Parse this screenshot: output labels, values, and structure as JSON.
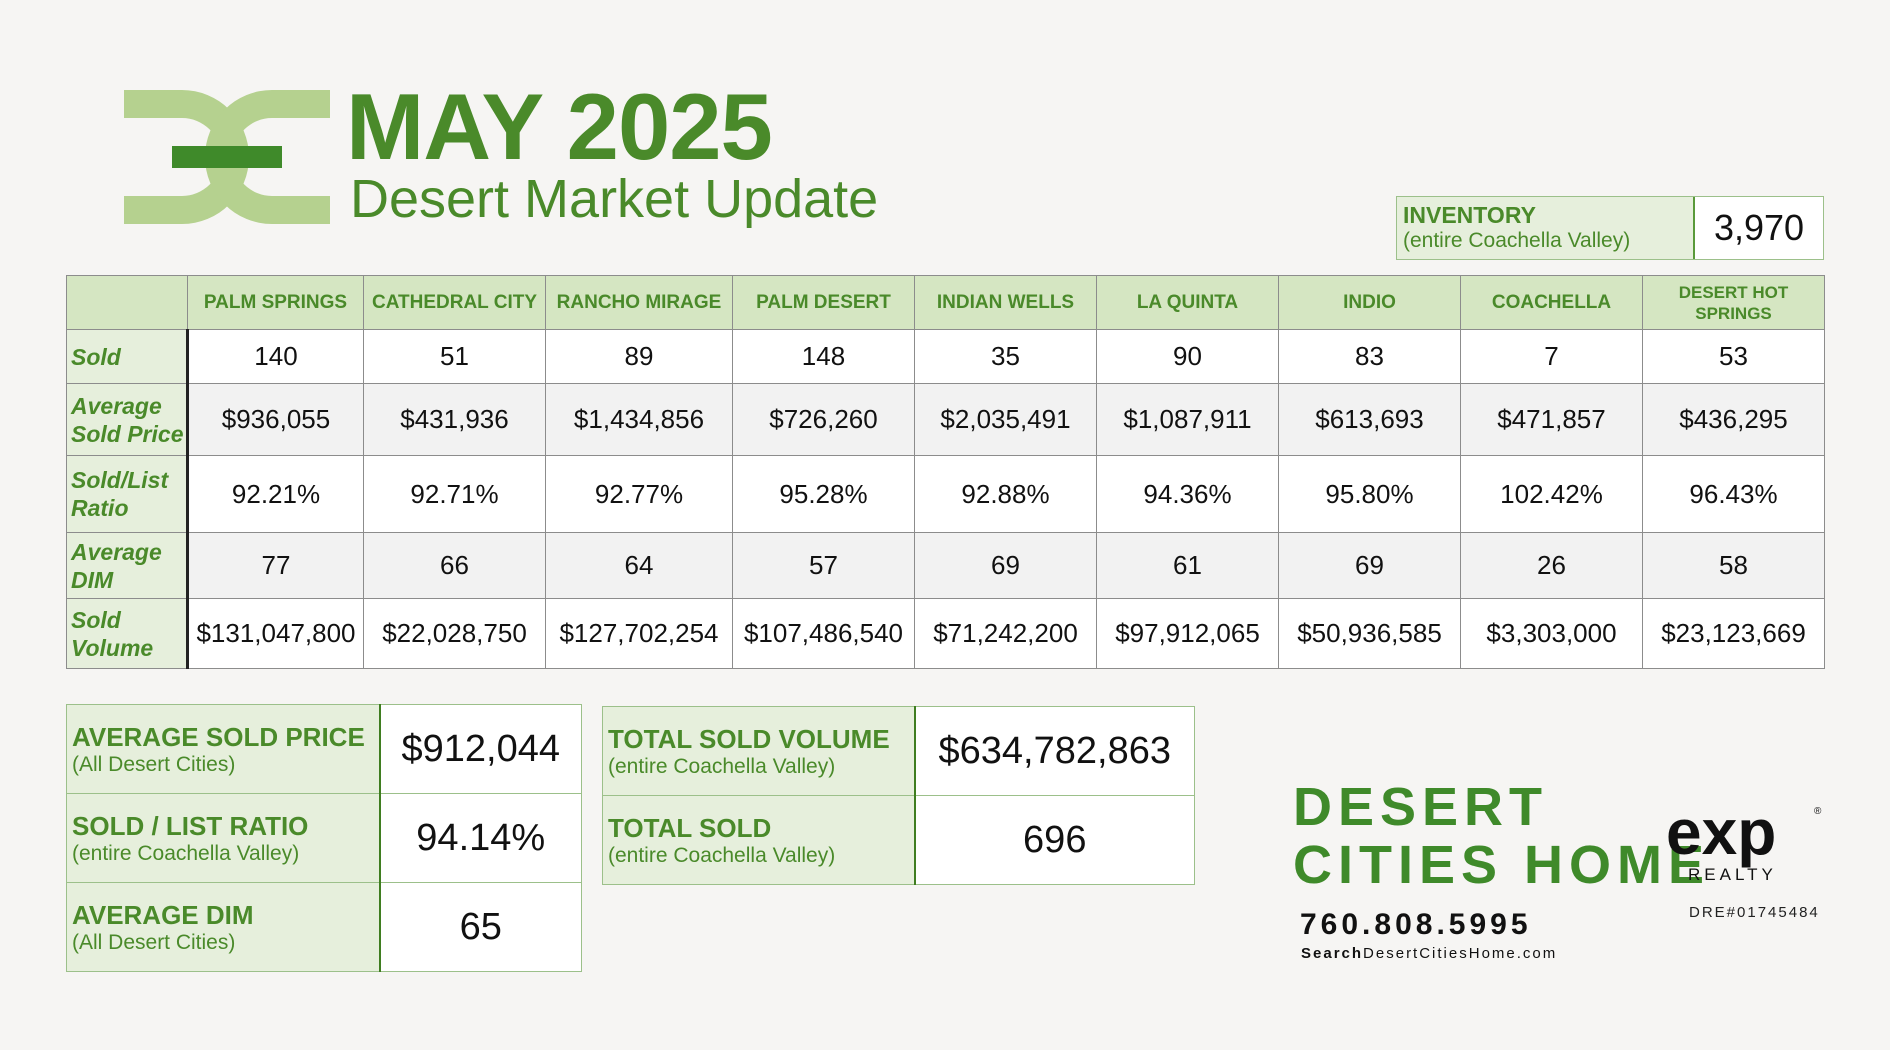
{
  "header": {
    "title": "MAY 2025",
    "subtitle": "Desert Market Update"
  },
  "inventory": {
    "label": "INVENTORY",
    "sublabel": "(entire Coachella Valley)",
    "value": "3,970"
  },
  "table": {
    "columns": [
      "PALM SPRINGS",
      "CATHEDRAL CITY",
      "RANCHO MIRAGE",
      "PALM DESERT",
      "INDIAN WELLS",
      "LA QUINTA",
      "INDIO",
      "COACHELLA",
      "DESERT HOT SPRINGS"
    ],
    "rows": [
      {
        "label": "Sold",
        "values": [
          "140",
          "51",
          "89",
          "148",
          "35",
          "90",
          "83",
          "7",
          "53"
        ]
      },
      {
        "label": "Average Sold Price",
        "values": [
          "$936,055",
          "$431,936",
          "$1,434,856",
          "$726,260",
          "$2,035,491",
          "$1,087,911",
          "$613,693",
          "$471,857",
          "$436,295"
        ]
      },
      {
        "label": "Sold/List Ratio",
        "values": [
          "92.21%",
          "92.71%",
          "92.77%",
          "95.28%",
          "92.88%",
          "94.36%",
          "95.80%",
          "102.42%",
          "96.43%"
        ]
      },
      {
        "label": "Average DIM",
        "values": [
          "77",
          "66",
          "64",
          "57",
          "69",
          "61",
          "69",
          "26",
          "58"
        ]
      },
      {
        "label": "Sold Volume",
        "values": [
          "$131,047,800",
          "$22,028,750",
          "$127,702,254",
          "$107,486,540",
          "$71,242,200",
          "$97,912,065",
          "$50,936,585",
          "$3,303,000",
          "$23,123,669"
        ]
      }
    ]
  },
  "summary_left": [
    {
      "label": "AVERAGE SOLD PRICE",
      "sublabel": "(All Desert Cities)",
      "value": "$912,044"
    },
    {
      "label": "SOLD / LIST RATIO",
      "sublabel": "(entire Coachella Valley)",
      "value": "94.14%"
    },
    {
      "label": "AVERAGE DIM",
      "sublabel": "(All Desert Cities)",
      "value": "65"
    }
  ],
  "summary_right": [
    {
      "label": "TOTAL SOLD VOLUME",
      "sublabel": "(entire Coachella Valley)",
      "value": "$634,782,863"
    },
    {
      "label": "TOTAL SOLD",
      "sublabel": "(entire Coachella Valley)",
      "value": "696"
    }
  ],
  "brand": {
    "name_line1": "DESERT",
    "name_line2": "CITIES HOME",
    "phone": "760.808.5995",
    "website_bold": "Search",
    "website_rest": "DesertCitiesHome.com",
    "exp_text": "exp",
    "exp_sub": "REALTY",
    "dre": "DRE#01745484"
  },
  "colors": {
    "brand_green": "#4a8a2a",
    "light_green": "#b5d18f",
    "header_bg": "#d5e6c2",
    "label_bg": "#e6efdc"
  }
}
